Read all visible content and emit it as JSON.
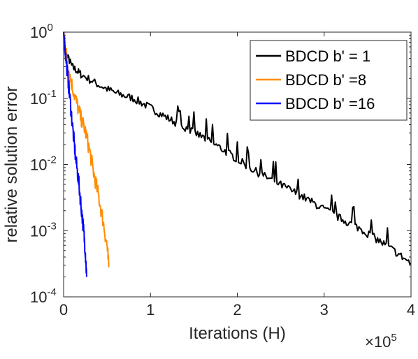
{
  "chart_data": {
    "type": "line",
    "xlabel": "Iterations (H)",
    "ylabel": "relative solution error",
    "x_multiplier_label": {
      "base": "×10",
      "exp": "5"
    },
    "xlim": [
      0,
      400000
    ],
    "ylim": [
      0.0001,
      1
    ],
    "y_scale": "log",
    "grid": false,
    "legend_position": "top-right",
    "x_ticks": [
      {
        "value": 0,
        "label": "0"
      },
      {
        "value": 100000,
        "label": "1"
      },
      {
        "value": 200000,
        "label": "2"
      },
      {
        "value": 300000,
        "label": "3"
      },
      {
        "value": 400000,
        "label": "4"
      }
    ],
    "y_ticks": [
      {
        "value": 1,
        "base": "10",
        "exp": "0"
      },
      {
        "value": 0.1,
        "base": "10",
        "exp": "-1"
      },
      {
        "value": 0.01,
        "base": "10",
        "exp": "-2"
      },
      {
        "value": 0.001,
        "base": "10",
        "exp": "-3"
      },
      {
        "value": 0.0001,
        "base": "10",
        "exp": "-4"
      }
    ],
    "series": [
      {
        "name": "BDCD b' = 1",
        "color": "#000000",
        "x": [
          0,
          2000,
          10000,
          20000,
          40000,
          60000,
          80000,
          100000,
          120000,
          140000,
          160000,
          180000,
          200000,
          220000,
          240000,
          260000,
          280000,
          300000,
          320000,
          340000,
          360000,
          380000,
          400000
        ],
        "y": [
          1.0,
          0.5,
          0.3,
          0.23,
          0.16,
          0.12,
          0.1,
          0.072,
          0.05,
          0.036,
          0.026,
          0.018,
          0.012,
          0.008,
          0.0058,
          0.0042,
          0.003,
          0.0021,
          0.0015,
          0.0011,
          0.00075,
          0.0005,
          0.00032
        ]
      },
      {
        "name": "BDCD b' =8",
        "color": "#FF8C00",
        "x": [
          0,
          2000,
          5000,
          10000,
          15000,
          20000,
          25000,
          30000,
          35000,
          40000,
          45000,
          50000,
          52000
        ],
        "y": [
          1.0,
          0.6,
          0.3,
          0.15,
          0.085,
          0.05,
          0.032,
          0.016,
          0.007,
          0.0035,
          0.0015,
          0.0006,
          0.00028
        ]
      },
      {
        "name": "BDCD b' =16",
        "color": "#0000FF",
        "x": [
          0,
          2000,
          5000,
          8000,
          11000,
          14000,
          17000,
          20000,
          23000,
          25000,
          26500
        ],
        "y": [
          1.0,
          0.5,
          0.2,
          0.08,
          0.03,
          0.012,
          0.006,
          0.0025,
          0.001,
          0.0005,
          0.0002
        ]
      }
    ]
  }
}
